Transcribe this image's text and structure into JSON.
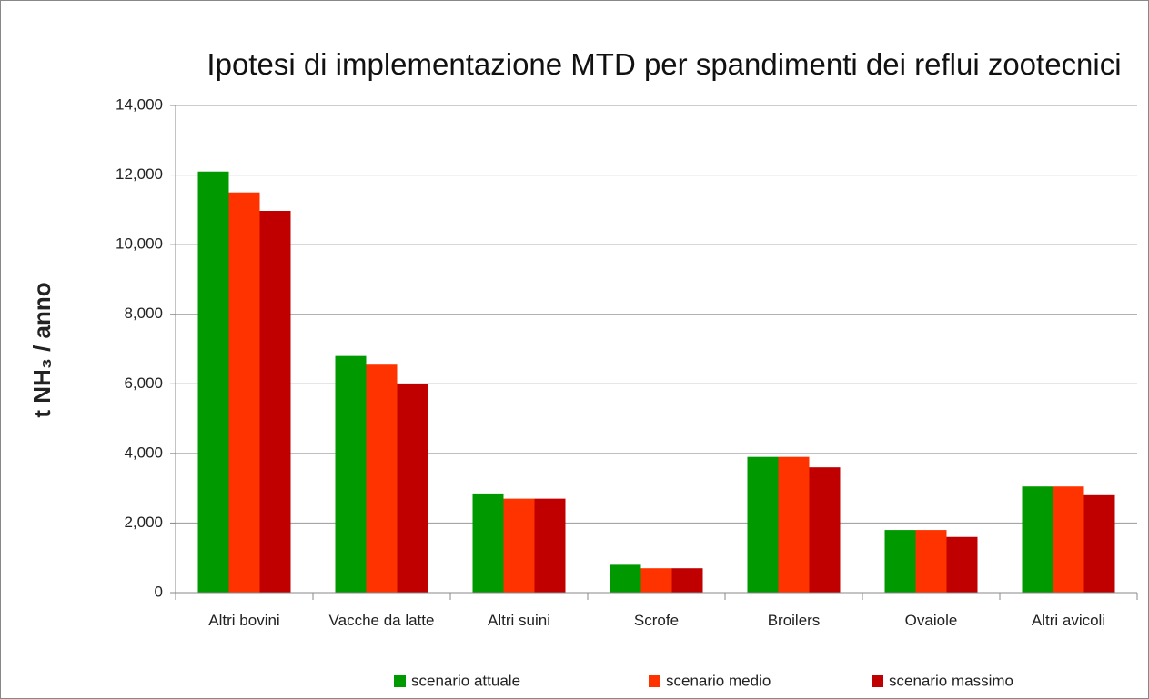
{
  "chart_data": {
    "type": "bar",
    "title": "Ipotesi di implementazione MTD per spandimenti dei reflui zootecnici",
    "ylabel": "t NH₃ / anno",
    "categories": [
      "Altri bovini",
      "Vacche da latte",
      "Altri suini",
      "Scrofe",
      "Broilers",
      "Ovaiole",
      "Altri avicoli"
    ],
    "series": [
      {
        "name": "scenario attuale",
        "color": "#009900",
        "values": [
          12100,
          6800,
          2850,
          800,
          3900,
          1800,
          3050
        ]
      },
      {
        "name": "scenario medio",
        "color": "#ff3300",
        "values": [
          11500,
          6550,
          2700,
          700,
          3900,
          1800,
          3050
        ]
      },
      {
        "name": "scenario massimo",
        "color": "#c00000",
        "values": [
          10970,
          6000,
          2700,
          700,
          3600,
          1600,
          2800
        ]
      }
    ],
    "ylim": [
      0,
      14000
    ],
    "yticks": [
      0,
      {
        "value": 2000,
        "label": "2,000"
      },
      {
        "value": 4000,
        "label": "4,000"
      },
      {
        "value": 6000,
        "label": "6,000"
      },
      {
        "value": 8000,
        "label": "8,000"
      },
      {
        "value": 10000,
        "label": "10,000"
      },
      {
        "value": 12000,
        "label": "12,000"
      },
      {
        "value": 14000,
        "label": "14,000"
      }
    ],
    "grid": true,
    "legend": "bottom"
  }
}
